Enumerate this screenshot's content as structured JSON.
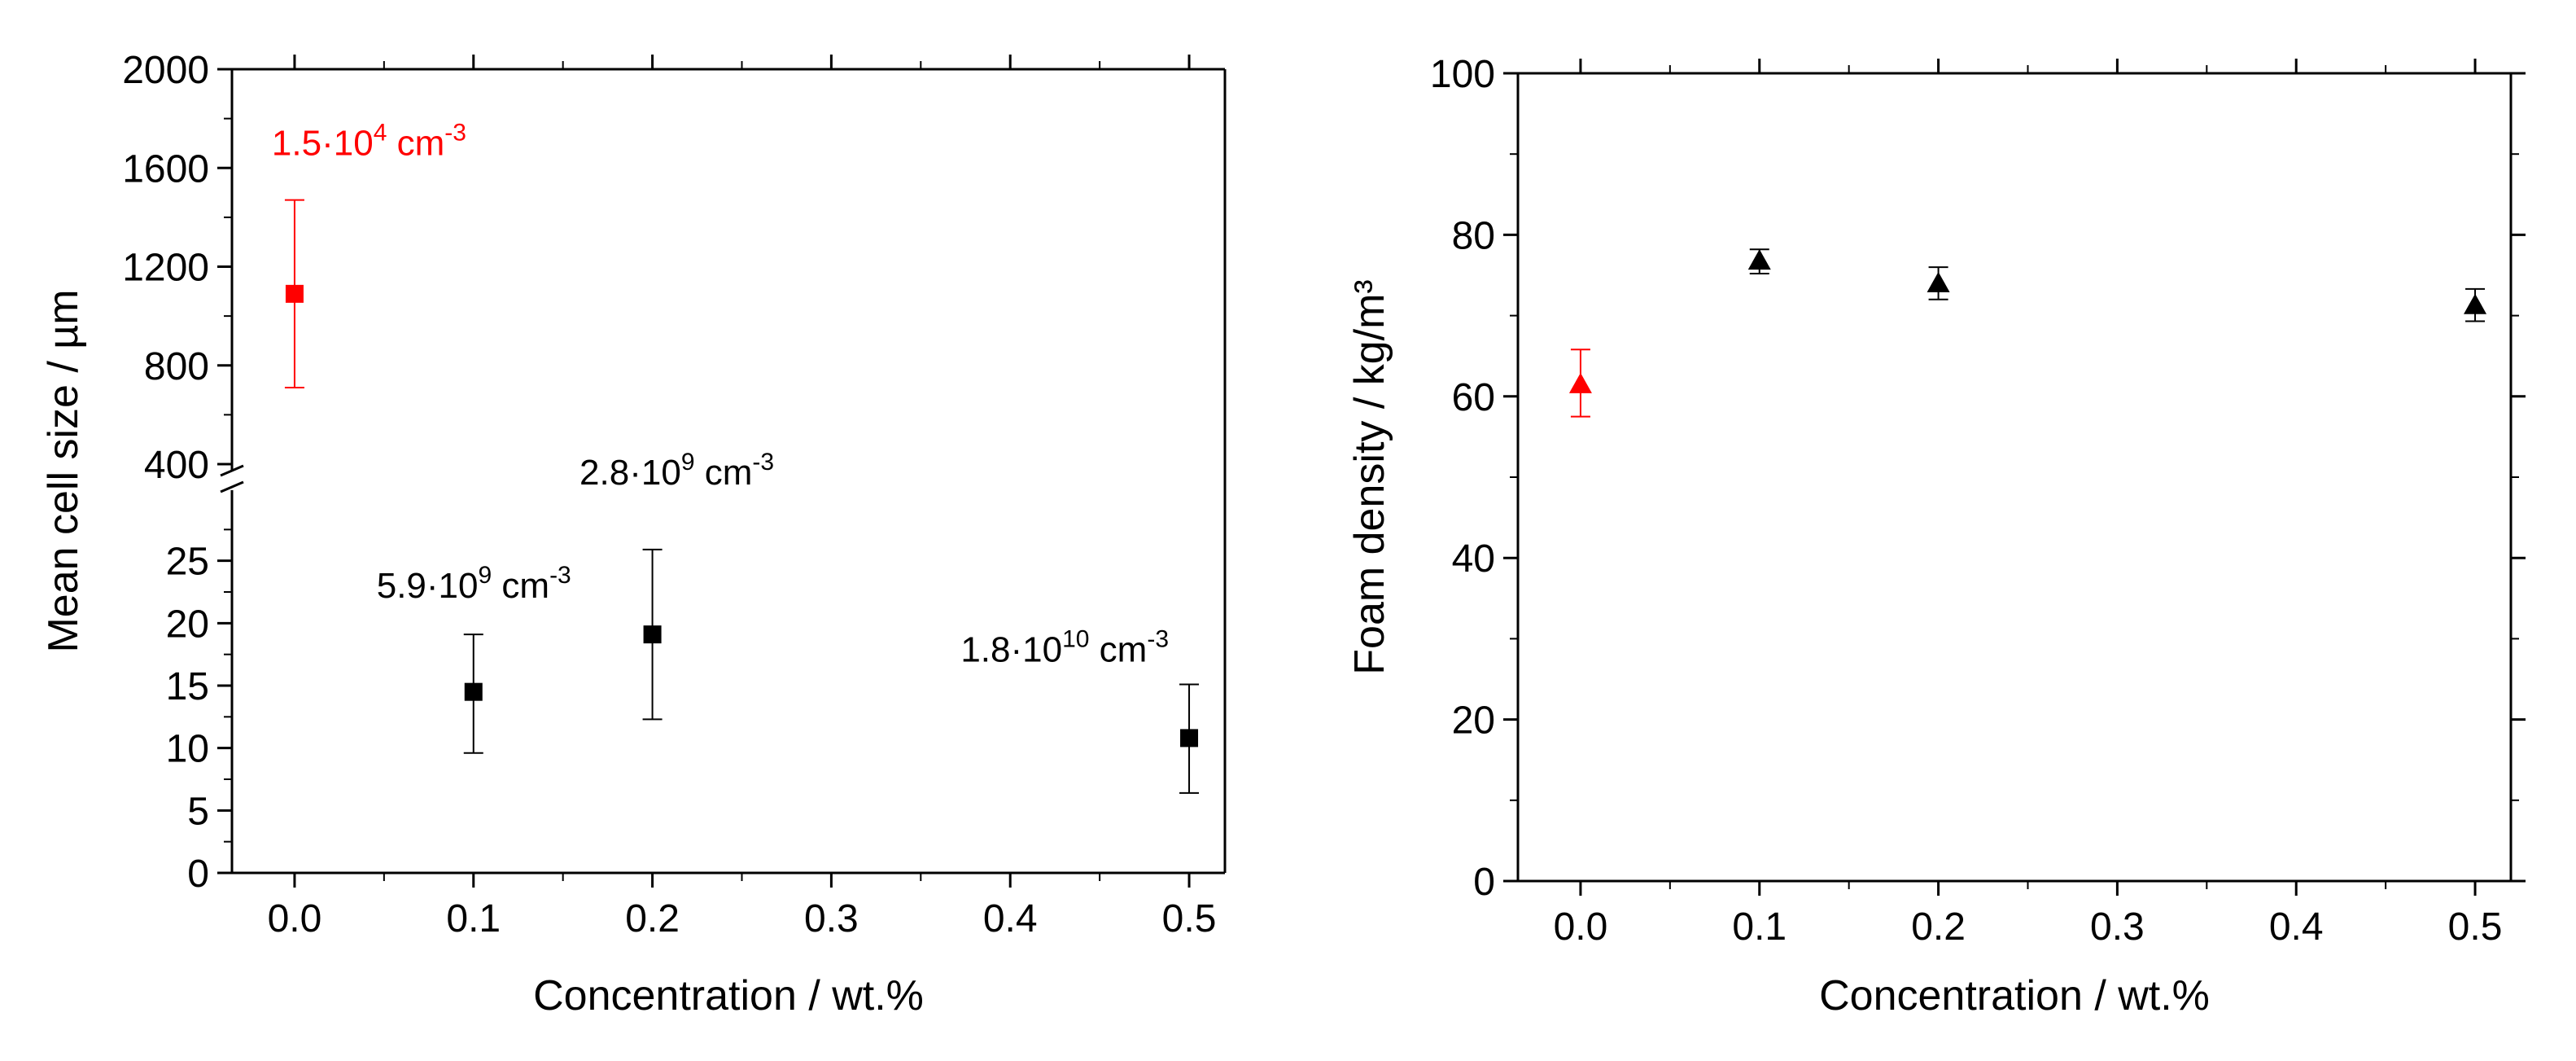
{
  "chart_data": [
    {
      "type": "scatter",
      "xlabel": "Concentration / wt.%",
      "ylabel": "Mean cell size / µm",
      "xlim": [
        -0.035,
        0.52
      ],
      "x_ticks": [
        "0.0",
        "0.1",
        "0.2",
        "0.3",
        "0.4",
        "0.5"
      ],
      "broken_y_axis": true,
      "upper_ylim": [
        400,
        2000
      ],
      "upper_y_ticks": [
        "400",
        "800",
        "1200",
        "1600",
        "2000"
      ],
      "lower_ylim": [
        0,
        30
      ],
      "lower_y_ticks": [
        "0",
        "5",
        "10",
        "15",
        "20",
        "25"
      ],
      "marker": "square",
      "series": [
        {
          "color": "#ff0000",
          "points": [
            {
              "x": 0.0,
              "y": 1090,
              "err_low": 710,
              "err_high": 1470,
              "annotation": {
                "base": "1.5·10",
                "exp": "4",
                "unit": " cm",
                "unit_exp": "-3"
              }
            }
          ]
        },
        {
          "color": "#000000",
          "points": [
            {
              "x": 0.1,
              "y": 14.5,
              "err_low": 9.6,
              "err_high": 19.1,
              "annotation": {
                "base": "5.9·10",
                "exp": "9",
                "unit": " cm",
                "unit_exp": "-3"
              }
            },
            {
              "x": 0.2,
              "y": 19.1,
              "err_low": 12.3,
              "err_high": 25.9,
              "annotation": {
                "base": "2.8·10",
                "exp": "9",
                "unit": " cm",
                "unit_exp": "-3"
              }
            },
            {
              "x": 0.5,
              "y": 10.8,
              "err_low": 6.4,
              "err_high": 15.1,
              "annotation": {
                "base": "1.8·10",
                "exp": "10",
                "unit": " cm",
                "unit_exp": "-3"
              }
            }
          ]
        }
      ]
    },
    {
      "type": "scatter",
      "xlabel": "Concentration / wt.%",
      "ylabel": "Foam density / kg/m³",
      "xlim": [
        -0.035,
        0.52
      ],
      "x_ticks": [
        "0.0",
        "0.1",
        "0.2",
        "0.3",
        "0.4",
        "0.5"
      ],
      "ylim": [
        0,
        100
      ],
      "y_ticks": [
        "0",
        "20",
        "40",
        "60",
        "80",
        "100"
      ],
      "marker": "triangle",
      "series": [
        {
          "color": "#ff0000",
          "points": [
            {
              "x": 0.0,
              "y": 61.5,
              "err_low": 57.5,
              "err_high": 65.8
            }
          ]
        },
        {
          "color": "#000000",
          "points": [
            {
              "x": 0.1,
              "y": 76.8,
              "err_low": 75.2,
              "err_high": 78.2
            },
            {
              "x": 0.2,
              "y": 74.0,
              "err_low": 72.0,
              "err_high": 76.0
            },
            {
              "x": 0.5,
              "y": 71.3,
              "err_low": 69.3,
              "err_high": 73.3
            }
          ]
        }
      ]
    }
  ]
}
